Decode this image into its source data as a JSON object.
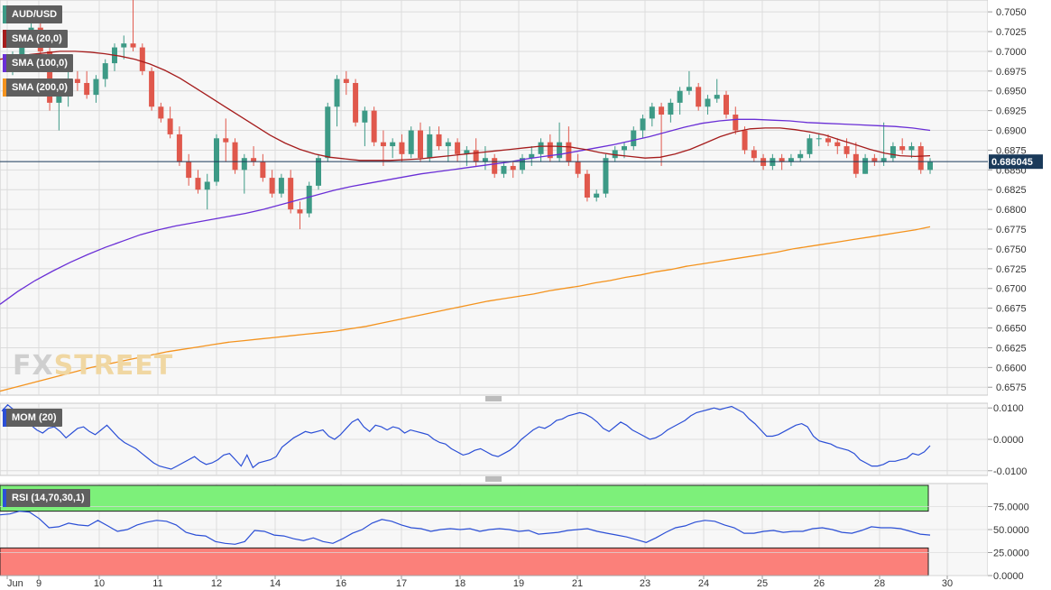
{
  "pair": "AUD/USD",
  "current_price_label": "0.686045",
  "brand": {
    "fx": "FX",
    "street": "STREET"
  },
  "legend": {
    "sma20": "SMA (20,0)",
    "sma100": "SMA (100,0)",
    "sma200": "SMA (200,0)",
    "mom": "MOM (20)",
    "rsi": "RSI (14,70,30,1)"
  },
  "colors": {
    "background": "#f7f7f7",
    "grid": "#dcdcdc",
    "bull": "#3d9a86",
    "bear": "#e0584c",
    "sma20": "#a51c1c",
    "sma100": "#6a2fd6",
    "sma200": "#f4931e",
    "oscillator": "#2b4fd6",
    "rsi_overbought": "#7df07a",
    "rsi_oversold": "#fb807a",
    "price_line": "#1a3a5a",
    "price_tag": "#1a3a5a"
  },
  "chart_data": [
    {
      "type": "candlestick",
      "title": "AUD/USD",
      "y_range": [
        0.6565,
        0.7065
      ],
      "y_ticks": [
        "0.7050",
        "0.7025",
        "0.7000",
        "0.6975",
        "0.6950",
        "0.6925",
        "0.6900",
        "0.6875",
        "0.6850",
        "0.6825",
        "0.6800",
        "0.6775",
        "0.6750",
        "0.6725",
        "0.6700",
        "0.6675",
        "0.6650",
        "0.6625",
        "0.6600",
        "0.6575"
      ],
      "x_labels": [
        "Jun",
        "9",
        "10",
        "11",
        "12",
        "14",
        "16",
        "17",
        "18",
        "19",
        "21",
        "23",
        "24",
        "25",
        "26",
        "28",
        "30"
      ],
      "current_price": 0.686045,
      "candles": [
        [
          0.6975,
          0.7,
          0.697,
          0.6995
        ],
        [
          0.6995,
          0.7025,
          0.6985,
          0.702
        ],
        [
          0.702,
          0.705,
          0.701,
          0.703
        ],
        [
          0.703,
          0.704,
          0.699,
          0.7
        ],
        [
          0.7,
          0.701,
          0.6925,
          0.6935
        ],
        [
          0.6935,
          0.696,
          0.69,
          0.6955
        ],
        [
          0.6955,
          0.6975,
          0.693,
          0.6965
        ],
        [
          0.6965,
          0.6975,
          0.695,
          0.696
        ],
        [
          0.696,
          0.6975,
          0.694,
          0.6945
        ],
        [
          0.6945,
          0.697,
          0.6935,
          0.6965
        ],
        [
          0.6965,
          0.699,
          0.6955,
          0.6985
        ],
        [
          0.6985,
          0.701,
          0.6975,
          0.7005
        ],
        [
          0.7005,
          0.702,
          0.699,
          0.701
        ],
        [
          0.701,
          0.7065,
          0.7,
          0.7005
        ],
        [
          0.7005,
          0.701,
          0.697,
          0.6975
        ],
        [
          0.6975,
          0.698,
          0.6925,
          0.693
        ],
        [
          0.693,
          0.6935,
          0.691,
          0.6915
        ],
        [
          0.6915,
          0.693,
          0.689,
          0.6895
        ],
        [
          0.6895,
          0.6905,
          0.6855,
          0.686
        ],
        [
          0.686,
          0.687,
          0.683,
          0.684
        ],
        [
          0.684,
          0.685,
          0.682,
          0.6825
        ],
        [
          0.6825,
          0.6845,
          0.68,
          0.6835
        ],
        [
          0.6835,
          0.6895,
          0.683,
          0.689
        ],
        [
          0.689,
          0.6915,
          0.686,
          0.6885
        ],
        [
          0.6885,
          0.689,
          0.6845,
          0.685
        ],
        [
          0.685,
          0.687,
          0.682,
          0.6865
        ],
        [
          0.6865,
          0.688,
          0.6855,
          0.686
        ],
        [
          0.686,
          0.687,
          0.6835,
          0.684
        ],
        [
          0.684,
          0.685,
          0.6815,
          0.682
        ],
        [
          0.682,
          0.6845,
          0.6815,
          0.684
        ],
        [
          0.684,
          0.685,
          0.6795,
          0.68
        ],
        [
          0.68,
          0.681,
          0.6775,
          0.6795
        ],
        [
          0.6795,
          0.6835,
          0.679,
          0.683
        ],
        [
          0.683,
          0.687,
          0.6825,
          0.6865
        ],
        [
          0.6865,
          0.6935,
          0.686,
          0.693
        ],
        [
          0.693,
          0.697,
          0.6905,
          0.6965
        ],
        [
          0.6965,
          0.6975,
          0.6945,
          0.696
        ],
        [
          0.696,
          0.6965,
          0.6905,
          0.691
        ],
        [
          0.691,
          0.693,
          0.688,
          0.6925
        ],
        [
          0.6925,
          0.693,
          0.688,
          0.6885
        ],
        [
          0.6885,
          0.69,
          0.6855,
          0.688
        ],
        [
          0.688,
          0.689,
          0.6865,
          0.6885
        ],
        [
          0.6885,
          0.6895,
          0.686,
          0.687
        ],
        [
          0.687,
          0.6905,
          0.6865,
          0.69
        ],
        [
          0.69,
          0.691,
          0.686,
          0.6865
        ],
        [
          0.6865,
          0.6905,
          0.686,
          0.6895
        ],
        [
          0.6895,
          0.6905,
          0.6875,
          0.688
        ],
        [
          0.688,
          0.689,
          0.686,
          0.6885
        ],
        [
          0.6885,
          0.689,
          0.686,
          0.687
        ],
        [
          0.687,
          0.688,
          0.6855,
          0.6875
        ],
        [
          0.6875,
          0.689,
          0.6855,
          0.686
        ],
        [
          0.686,
          0.688,
          0.685,
          0.6865
        ],
        [
          0.6865,
          0.687,
          0.684,
          0.6845
        ],
        [
          0.6845,
          0.686,
          0.684,
          0.6855
        ],
        [
          0.6855,
          0.686,
          0.684,
          0.685
        ],
        [
          0.685,
          0.687,
          0.6845,
          0.6865
        ],
        [
          0.6865,
          0.688,
          0.6855,
          0.687
        ],
        [
          0.687,
          0.689,
          0.686,
          0.6885
        ],
        [
          0.6885,
          0.6895,
          0.686,
          0.6865
        ],
        [
          0.6865,
          0.691,
          0.686,
          0.6885
        ],
        [
          0.6885,
          0.6905,
          0.6855,
          0.686
        ],
        [
          0.686,
          0.687,
          0.684,
          0.6845
        ],
        [
          0.6845,
          0.685,
          0.681,
          0.6815
        ],
        [
          0.6815,
          0.6825,
          0.681,
          0.682
        ],
        [
          0.682,
          0.687,
          0.6815,
          0.6865
        ],
        [
          0.6865,
          0.688,
          0.686,
          0.6875
        ],
        [
          0.6875,
          0.6885,
          0.6865,
          0.688
        ],
        [
          0.688,
          0.6905,
          0.6875,
          0.69
        ],
        [
          0.69,
          0.692,
          0.689,
          0.6915
        ],
        [
          0.6915,
          0.6935,
          0.6905,
          0.693
        ],
        [
          0.693,
          0.6935,
          0.6855,
          0.692
        ],
        [
          0.692,
          0.694,
          0.691,
          0.6935
        ],
        [
          0.6935,
          0.6955,
          0.692,
          0.695
        ],
        [
          0.695,
          0.6975,
          0.6945,
          0.6955
        ],
        [
          0.6955,
          0.696,
          0.6925,
          0.693
        ],
        [
          0.693,
          0.6945,
          0.692,
          0.694
        ],
        [
          0.694,
          0.6965,
          0.6935,
          0.6945
        ],
        [
          0.6945,
          0.695,
          0.6915,
          0.692
        ],
        [
          0.692,
          0.693,
          0.6895,
          0.69
        ],
        [
          0.69,
          0.6905,
          0.687,
          0.6875
        ],
        [
          0.6875,
          0.688,
          0.686,
          0.6865
        ],
        [
          0.6865,
          0.687,
          0.685,
          0.6855
        ],
        [
          0.6855,
          0.687,
          0.685,
          0.6865
        ],
        [
          0.6865,
          0.687,
          0.685,
          0.686
        ],
        [
          0.686,
          0.687,
          0.6855,
          0.6865
        ],
        [
          0.6865,
          0.6875,
          0.686,
          0.687
        ],
        [
          0.687,
          0.6895,
          0.6865,
          0.689
        ],
        [
          0.689,
          0.6895,
          0.688,
          0.689
        ],
        [
          0.689,
          0.6895,
          0.688,
          0.6885
        ],
        [
          0.6885,
          0.689,
          0.687,
          0.688
        ],
        [
          0.688,
          0.689,
          0.6865,
          0.687
        ],
        [
          0.687,
          0.6885,
          0.684,
          0.6845
        ],
        [
          0.6845,
          0.687,
          0.6845,
          0.6865
        ],
        [
          0.6865,
          0.687,
          0.6855,
          0.686
        ],
        [
          0.686,
          0.691,
          0.6855,
          0.6865
        ],
        [
          0.6865,
          0.6885,
          0.686,
          0.688
        ],
        [
          0.688,
          0.689,
          0.687,
          0.6875
        ],
        [
          0.6875,
          0.6885,
          0.6865,
          0.688
        ],
        [
          0.688,
          0.6885,
          0.6845,
          0.685
        ],
        [
          0.685,
          0.6865,
          0.6845,
          0.686
        ]
      ],
      "series": [
        {
          "name": "SMA (20,0)",
          "values": [
            0.699,
            0.6993,
            0.6996,
            0.6998,
            0.7,
            0.7,
            0.6999,
            0.6997,
            0.6994,
            0.699,
            0.6984,
            0.6976,
            0.6966,
            0.6954,
            0.6942,
            0.693,
            0.6918,
            0.6906,
            0.6894,
            0.6884,
            0.6876,
            0.687,
            0.6866,
            0.6864,
            0.6862,
            0.6862,
            0.6862,
            0.6863,
            0.6864,
            0.6866,
            0.6868,
            0.687,
            0.6872,
            0.6874,
            0.6876,
            0.6878,
            0.688,
            0.688,
            0.6879,
            0.6876,
            0.6872,
            0.6869,
            0.6867,
            0.6865,
            0.6866,
            0.687,
            0.6876,
            0.6884,
            0.6892,
            0.6898,
            0.6902,
            0.6903,
            0.6903,
            0.6901,
            0.6898,
            0.6894,
            0.6888,
            0.6882,
            0.6876,
            0.6871,
            0.6868,
            0.6867,
            0.6868
          ]
        },
        {
          "name": "SMA (100,0)",
          "values": [
            0.668,
            0.6696,
            0.671,
            0.6722,
            0.6733,
            0.6743,
            0.6752,
            0.676,
            0.6768,
            0.6774,
            0.6779,
            0.6783,
            0.6787,
            0.6791,
            0.6795,
            0.68,
            0.6806,
            0.6812,
            0.6818,
            0.6824,
            0.6829,
            0.6833,
            0.6837,
            0.6841,
            0.6845,
            0.6848,
            0.6851,
            0.6854,
            0.6857,
            0.686,
            0.6864,
            0.6867,
            0.687,
            0.6874,
            0.6878,
            0.6882,
            0.6887,
            0.6892,
            0.6898,
            0.6904,
            0.6909,
            0.6912,
            0.6914,
            0.6914,
            0.6913,
            0.6912,
            0.691,
            0.6909,
            0.6908,
            0.6907,
            0.6906,
            0.6905,
            0.6903,
            0.69
          ]
        },
        {
          "name": "SMA (200,0)",
          "values": [
            0.657,
            0.6575,
            0.658,
            0.6585,
            0.659,
            0.6595,
            0.66,
            0.6604,
            0.6608,
            0.6612,
            0.6616,
            0.662,
            0.6623,
            0.6626,
            0.6629,
            0.6632,
            0.6634,
            0.6636,
            0.6638,
            0.664,
            0.6642,
            0.6644,
            0.6646,
            0.6649,
            0.6652,
            0.6656,
            0.666,
            0.6664,
            0.6668,
            0.6672,
            0.6676,
            0.668,
            0.6684,
            0.6687,
            0.669,
            0.6693,
            0.6697,
            0.67,
            0.6703,
            0.6707,
            0.671,
            0.6714,
            0.6717,
            0.6721,
            0.6724,
            0.6728,
            0.6731,
            0.6734,
            0.6737,
            0.674,
            0.6743,
            0.6746,
            0.675,
            0.6753,
            0.6756,
            0.6759,
            0.6762,
            0.6765,
            0.6768,
            0.6771,
            0.6774,
            0.6778
          ]
        }
      ]
    },
    {
      "type": "line",
      "title": "MOM (20)",
      "y_range": [
        -0.0115,
        0.0115
      ],
      "y_ticks": [
        "0.0100",
        "0.0000",
        "-0.0100"
      ],
      "series": [
        {
          "name": "MOM (20)",
          "values": [
            0.009,
            0.011,
            0.0095,
            0.008,
            0.006,
            0.0045,
            0.003,
            0.002,
            0.0035,
            0.004,
            0.0025,
            0.0005,
            0.002,
            0.0035,
            0.004,
            0.0025,
            0.0015,
            0.003,
            0.0045,
            0.0025,
            0.0005,
            -0.001,
            -0.002,
            -0.003,
            -0.0045,
            -0.006,
            -0.0075,
            -0.0085,
            -0.009,
            -0.0095,
            -0.0085,
            -0.0075,
            -0.0065,
            -0.0055,
            -0.007,
            -0.008,
            -0.0075,
            -0.0065,
            -0.005,
            -0.0045,
            -0.0065,
            -0.0085,
            -0.005,
            -0.009,
            -0.0075,
            -0.007,
            -0.0065,
            -0.0055,
            -0.0025,
            -0.001,
            0.0005,
            0.0015,
            0.0025,
            0.002,
            0.0025,
            0.003,
            0.001,
            0.0,
            0.0015,
            0.0035,
            0.0055,
            0.0065,
            0.004,
            0.0025,
            0.0045,
            0.004,
            0.003,
            0.004,
            0.0035,
            0.002,
            0.003,
            0.0025,
            0.002,
            0.0015,
            0.0,
            -0.001,
            -0.0015,
            -0.003,
            -0.004,
            -0.005,
            -0.0045,
            -0.0035,
            -0.003,
            -0.004,
            -0.005,
            -0.0055,
            -0.0045,
            -0.0035,
            -0.002,
            0.0,
            0.0015,
            0.003,
            0.004,
            0.0035,
            0.0045,
            0.006,
            0.0065,
            0.0075,
            0.008,
            0.0085,
            0.008,
            0.007,
            0.0055,
            0.0035,
            0.0025,
            0.004,
            0.0055,
            0.0045,
            0.003,
            0.002,
            0.001,
            0.0,
            0.0005,
            0.0015,
            0.003,
            0.004,
            0.005,
            0.006,
            0.0075,
            0.0085,
            0.009,
            0.0095,
            0.01,
            0.0095,
            0.01,
            0.0105,
            0.0095,
            0.0085,
            0.0065,
            0.005,
            0.003,
            0.001,
            0.001,
            0.0015,
            0.0025,
            0.0035,
            0.0045,
            0.005,
            0.004,
            0.001,
            -0.0005,
            -0.001,
            -0.0015,
            -0.0025,
            -0.003,
            -0.0035,
            -0.0045,
            -0.0065,
            -0.0075,
            -0.0085,
            -0.0085,
            -0.008,
            -0.007,
            -0.007,
            -0.0065,
            -0.006,
            -0.0045,
            -0.005,
            -0.004,
            -0.002
          ]
        }
      ]
    },
    {
      "type": "line",
      "title": "RSI (14,70,30,1)",
      "y_range": [
        0,
        100
      ],
      "y_ticks": [
        "75.0000",
        "50.0000",
        "25.0000",
        "0.0000"
      ],
      "overbought": 70,
      "oversold": 30,
      "series": [
        {
          "name": "RSI (14,70,30,1)",
          "values": [
            66,
            67,
            70,
            69,
            62,
            52,
            53,
            57,
            55,
            54,
            60,
            54,
            48,
            50,
            55,
            58,
            60,
            59,
            55,
            47,
            44,
            43,
            37,
            35,
            34,
            37,
            49,
            48,
            44,
            43,
            40,
            38,
            41,
            37,
            35,
            40,
            46,
            50,
            57,
            61,
            59,
            55,
            52,
            51,
            48,
            50,
            51,
            50,
            51,
            48,
            50,
            51,
            50,
            48,
            49,
            45,
            46,
            47,
            49,
            50,
            51,
            48,
            46,
            44,
            42,
            39,
            36,
            41,
            47,
            52,
            54,
            58,
            60,
            59,
            55,
            52,
            46,
            46,
            48,
            49,
            47,
            48,
            48,
            51,
            52,
            50,
            47,
            46,
            49,
            53,
            52,
            52,
            51,
            48,
            45,
            44
          ]
        }
      ]
    }
  ]
}
